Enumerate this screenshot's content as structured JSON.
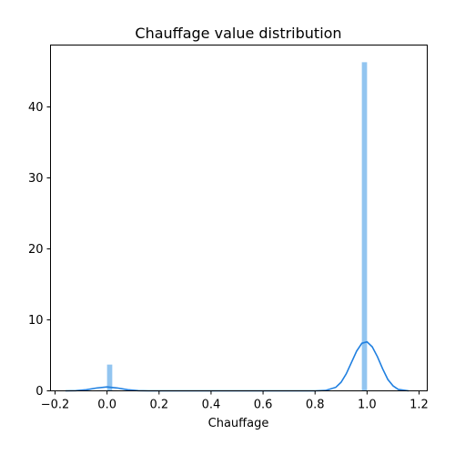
{
  "chart_data": {
    "type": "histogram",
    "title": "Chauffage value distribution",
    "xlabel": "Chauffage",
    "ylabel": "",
    "xlim": [
      -0.2,
      1.2
    ],
    "ylim": [
      0,
      48
    ],
    "xticks": [
      -0.2,
      0.0,
      0.2,
      0.4,
      0.6,
      0.8,
      1.0,
      1.2
    ],
    "xtick_labels": [
      "−0.2",
      "0.0",
      "0.2",
      "0.4",
      "0.6",
      "0.8",
      "1.0",
      "1.2"
    ],
    "yticks": [
      0,
      10,
      20,
      30,
      40
    ],
    "ytick_labels": [
      "0",
      "10",
      "20",
      "30",
      "40"
    ],
    "grid": false,
    "colors": {
      "bars": "#92c5f0",
      "kde": "#1f7fe0",
      "axes": "#000000"
    },
    "bins": [
      {
        "x0": 0.0,
        "x1": 0.02,
        "value": 3.7
      },
      {
        "x0": 0.98,
        "x1": 1.0,
        "value": 46.3
      }
    ],
    "kde": {
      "x": [
        -0.16,
        -0.12,
        -0.08,
        -0.04,
        0.0,
        0.04,
        0.08,
        0.12,
        0.16,
        0.2,
        0.3,
        0.4,
        0.5,
        0.6,
        0.7,
        0.8,
        0.84,
        0.88,
        0.9,
        0.92,
        0.94,
        0.96,
        0.98,
        1.0,
        1.02,
        1.04,
        1.06,
        1.08,
        1.1,
        1.12,
        1.16
      ],
      "y": [
        0.0,
        0.03,
        0.15,
        0.4,
        0.55,
        0.4,
        0.15,
        0.03,
        0.0,
        0.0,
        0.0,
        0.0,
        0.0,
        0.0,
        0.0,
        0.0,
        0.05,
        0.5,
        1.2,
        2.4,
        4.0,
        5.6,
        6.7,
        6.9,
        6.2,
        4.8,
        3.1,
        1.6,
        0.7,
        0.2,
        0.0
      ]
    }
  }
}
